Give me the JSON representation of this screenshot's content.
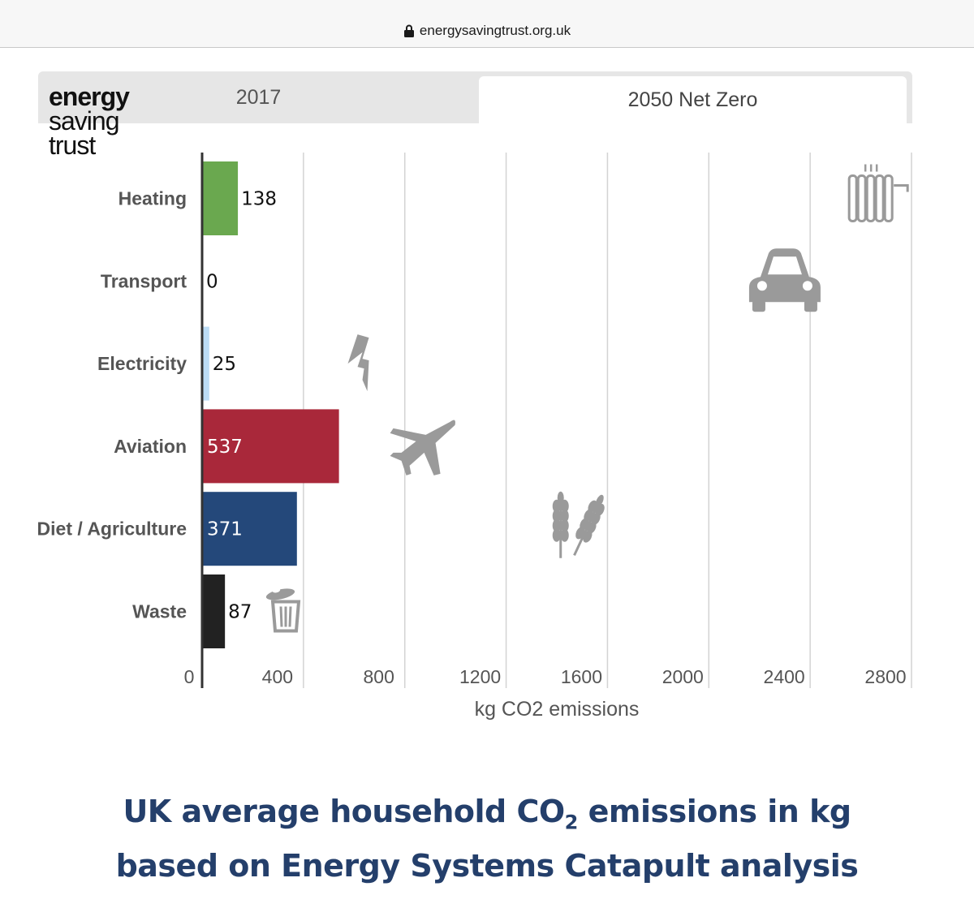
{
  "browser": {
    "url": "energysavingtrust.org.uk"
  },
  "logo": {
    "line1": "energy",
    "line2": "saving",
    "line3": "trust"
  },
  "tabs": [
    {
      "label": "2017",
      "active": false
    },
    {
      "label": "2050 Net Zero",
      "active": true
    }
  ],
  "caption": {
    "line1_before": "UK average household CO",
    "line1_sub": "2",
    "line1_after": " emissions in kg",
    "line2": "based on Energy Systems Catapult analysis"
  },
  "chart_data": {
    "type": "bar",
    "orientation": "horizontal",
    "categories": [
      "Heating",
      "Transport",
      "Electricity",
      "Aviation",
      "Diet / Agriculture",
      "Waste"
    ],
    "values": [
      138,
      0,
      25,
      537,
      371,
      87
    ],
    "colors": [
      "#6aa84f",
      "#000000",
      "#bcdcf5",
      "#a9283a",
      "#24487a",
      "#222222"
    ],
    "value_label_colors": [
      "#111111",
      "#111111",
      "#111111",
      "#ffffff",
      "#ffffff",
      "#111111"
    ],
    "icons": [
      "radiator-icon",
      "car-icon",
      "lightning-icon",
      "airplane-icon",
      "wheat-icon",
      "trash-can-icon"
    ],
    "icon_values": [
      2650,
      2300,
      620,
      870,
      1460,
      330
    ],
    "xticks": [
      0,
      400,
      800,
      1200,
      1600,
      2000,
      2400,
      2800
    ],
    "xlim": [
      0,
      2800
    ],
    "xlabel": "kg CO2 emissions",
    "grid": true
  }
}
